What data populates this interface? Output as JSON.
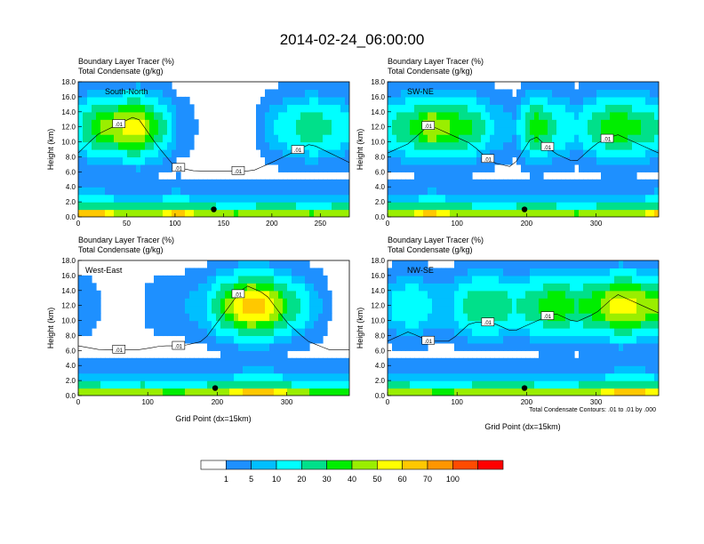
{
  "figure_title": "2014-02-24_06:00:00",
  "footnote": "Total Condensate Contours: .01 to .01 by .000",
  "colors": {
    "palette": [
      "#ffffff",
      "#1e90ff",
      "#00bfff",
      "#00ffff",
      "#00e08a",
      "#00ee00",
      "#9aee00",
      "#ffff00",
      "#ffc800",
      "#ff9600",
      "#ff4b00",
      "#ff0000"
    ],
    "contour": "#000000"
  },
  "colorbar": {
    "labels": [
      "1",
      "5",
      "10",
      "20",
      "30",
      "40",
      "50",
      "60",
      "70",
      "100"
    ]
  },
  "chart_data": [
    {
      "type": "heatmap",
      "section": "South-North",
      "title_line1": "Boundary Layer Tracer   (%)",
      "title_line2": "Total Condensate   (g/kg)",
      "ylabel": "Height (km)",
      "xlabel": "",
      "xlim": [
        0,
        280
      ],
      "ylim": [
        0,
        18
      ],
      "xticks": [
        "0",
        "50",
        "100",
        "150",
        "200",
        "250"
      ],
      "yticks": [
        "0.0",
        "2.0",
        "4.0",
        "6.0",
        "8.0",
        "10.0",
        "12.0",
        "14.0",
        "16.0",
        "18.0"
      ],
      "contour_labels": [
        ".01",
        ".01",
        ".01",
        ".01"
      ],
      "marker": {
        "x": 140,
        "y": 1.0
      },
      "tracer_percent_by_x": {
        "x": [
          0,
          20,
          40,
          60,
          80,
          100,
          120,
          140,
          160,
          180,
          200,
          220,
          240,
          260,
          280
        ],
        "surface_layer": [
          100,
          100,
          70,
          70,
          70,
          100,
          70,
          70,
          60,
          70,
          70,
          70,
          60,
          70,
          70
        ],
        "upper_plume": [
          20,
          40,
          50,
          60,
          30,
          5,
          1,
          1,
          1,
          1,
          10,
          20,
          30,
          20,
          10
        ]
      }
    },
    {
      "type": "heatmap",
      "section": "SW-NE",
      "title_line1": "Boundary Layer Tracer   (%)",
      "title_line2": "Total Condensate   (g/kg)",
      "ylabel": "Height (km)",
      "xlabel": "",
      "xlim": [
        0,
        390
      ],
      "ylim": [
        0,
        18
      ],
      "xticks": [
        "0",
        "100",
        "200",
        "300"
      ],
      "yticks": [
        "0.0",
        "2.0",
        "4.0",
        "6.0",
        "8.0",
        "10.0",
        "12.0",
        "14.0",
        "16.0",
        "18.0"
      ],
      "contour_labels": [
        ".01",
        ".01",
        ".01",
        ".01"
      ],
      "marker": {
        "x": 197,
        "y": 1.0
      },
      "tracer_percent_by_x": {
        "x": [
          0,
          30,
          60,
          90,
          120,
          150,
          180,
          210,
          240,
          270,
          300,
          330,
          360,
          390
        ],
        "surface_layer": [
          70,
          70,
          100,
          70,
          70,
          60,
          70,
          70,
          70,
          60,
          70,
          70,
          70,
          100
        ],
        "upper_plume": [
          20,
          30,
          50,
          40,
          30,
          10,
          5,
          40,
          20,
          10,
          30,
          40,
          30,
          20
        ]
      }
    },
    {
      "type": "heatmap",
      "section": "West-East",
      "title_line1": "Boundary Layer Tracer   (%)",
      "title_line2": "Total Condensate   (g/kg)",
      "ylabel": "Height (km)",
      "xlabel": "Grid Point (dx=15km)",
      "xlim": [
        0,
        390
      ],
      "ylim": [
        0,
        18
      ],
      "xticks": [
        "0",
        "100",
        "200",
        "300"
      ],
      "yticks": [
        "0.0",
        "2.0",
        "4.0",
        "6.0",
        "8.0",
        "10.0",
        "12.0",
        "14.0",
        "16.0",
        "18.0"
      ],
      "contour_labels": [
        ".01",
        ".01",
        ".01"
      ],
      "marker": {
        "x": 197,
        "y": 1.0
      },
      "tracer_percent_by_x": {
        "x": [
          0,
          30,
          60,
          90,
          120,
          150,
          180,
          210,
          240,
          270,
          300,
          330,
          360,
          390
        ],
        "surface_layer": [
          70,
          70,
          60,
          70,
          60,
          60,
          70,
          70,
          100,
          100,
          70,
          60,
          60,
          60
        ],
        "upper_plume": [
          5,
          1,
          1,
          1,
          5,
          5,
          10,
          40,
          70,
          60,
          30,
          10,
          1,
          1
        ]
      }
    },
    {
      "type": "heatmap",
      "section": "NW-SE",
      "title_line1": "Boundary Layer Tracer   (%)",
      "title_line2": "Total Condensate   (g/kg)",
      "ylabel": "Height (km)",
      "xlabel": "Grid Point (dx=15km)",
      "xlim": [
        0,
        390
      ],
      "ylim": [
        0,
        18
      ],
      "xticks": [
        "0",
        "100",
        "200",
        "300"
      ],
      "yticks": [
        "0.0",
        "2.0",
        "4.0",
        "6.0",
        "8.0",
        "10.0",
        "12.0",
        "14.0",
        "16.0",
        "18.0"
      ],
      "contour_labels": [
        ".01",
        ".01",
        ".01"
      ],
      "marker": {
        "x": 197,
        "y": 1.0
      },
      "tracer_percent_by_x": {
        "x": [
          0,
          30,
          60,
          90,
          120,
          150,
          180,
          210,
          240,
          270,
          300,
          330,
          360,
          390
        ],
        "surface_layer": [
          70,
          70,
          60,
          60,
          70,
          70,
          70,
          70,
          60,
          70,
          70,
          100,
          100,
          70
        ],
        "upper_plume": [
          10,
          20,
          10,
          10,
          30,
          30,
          20,
          30,
          40,
          30,
          40,
          60,
          50,
          40
        ]
      }
    }
  ]
}
